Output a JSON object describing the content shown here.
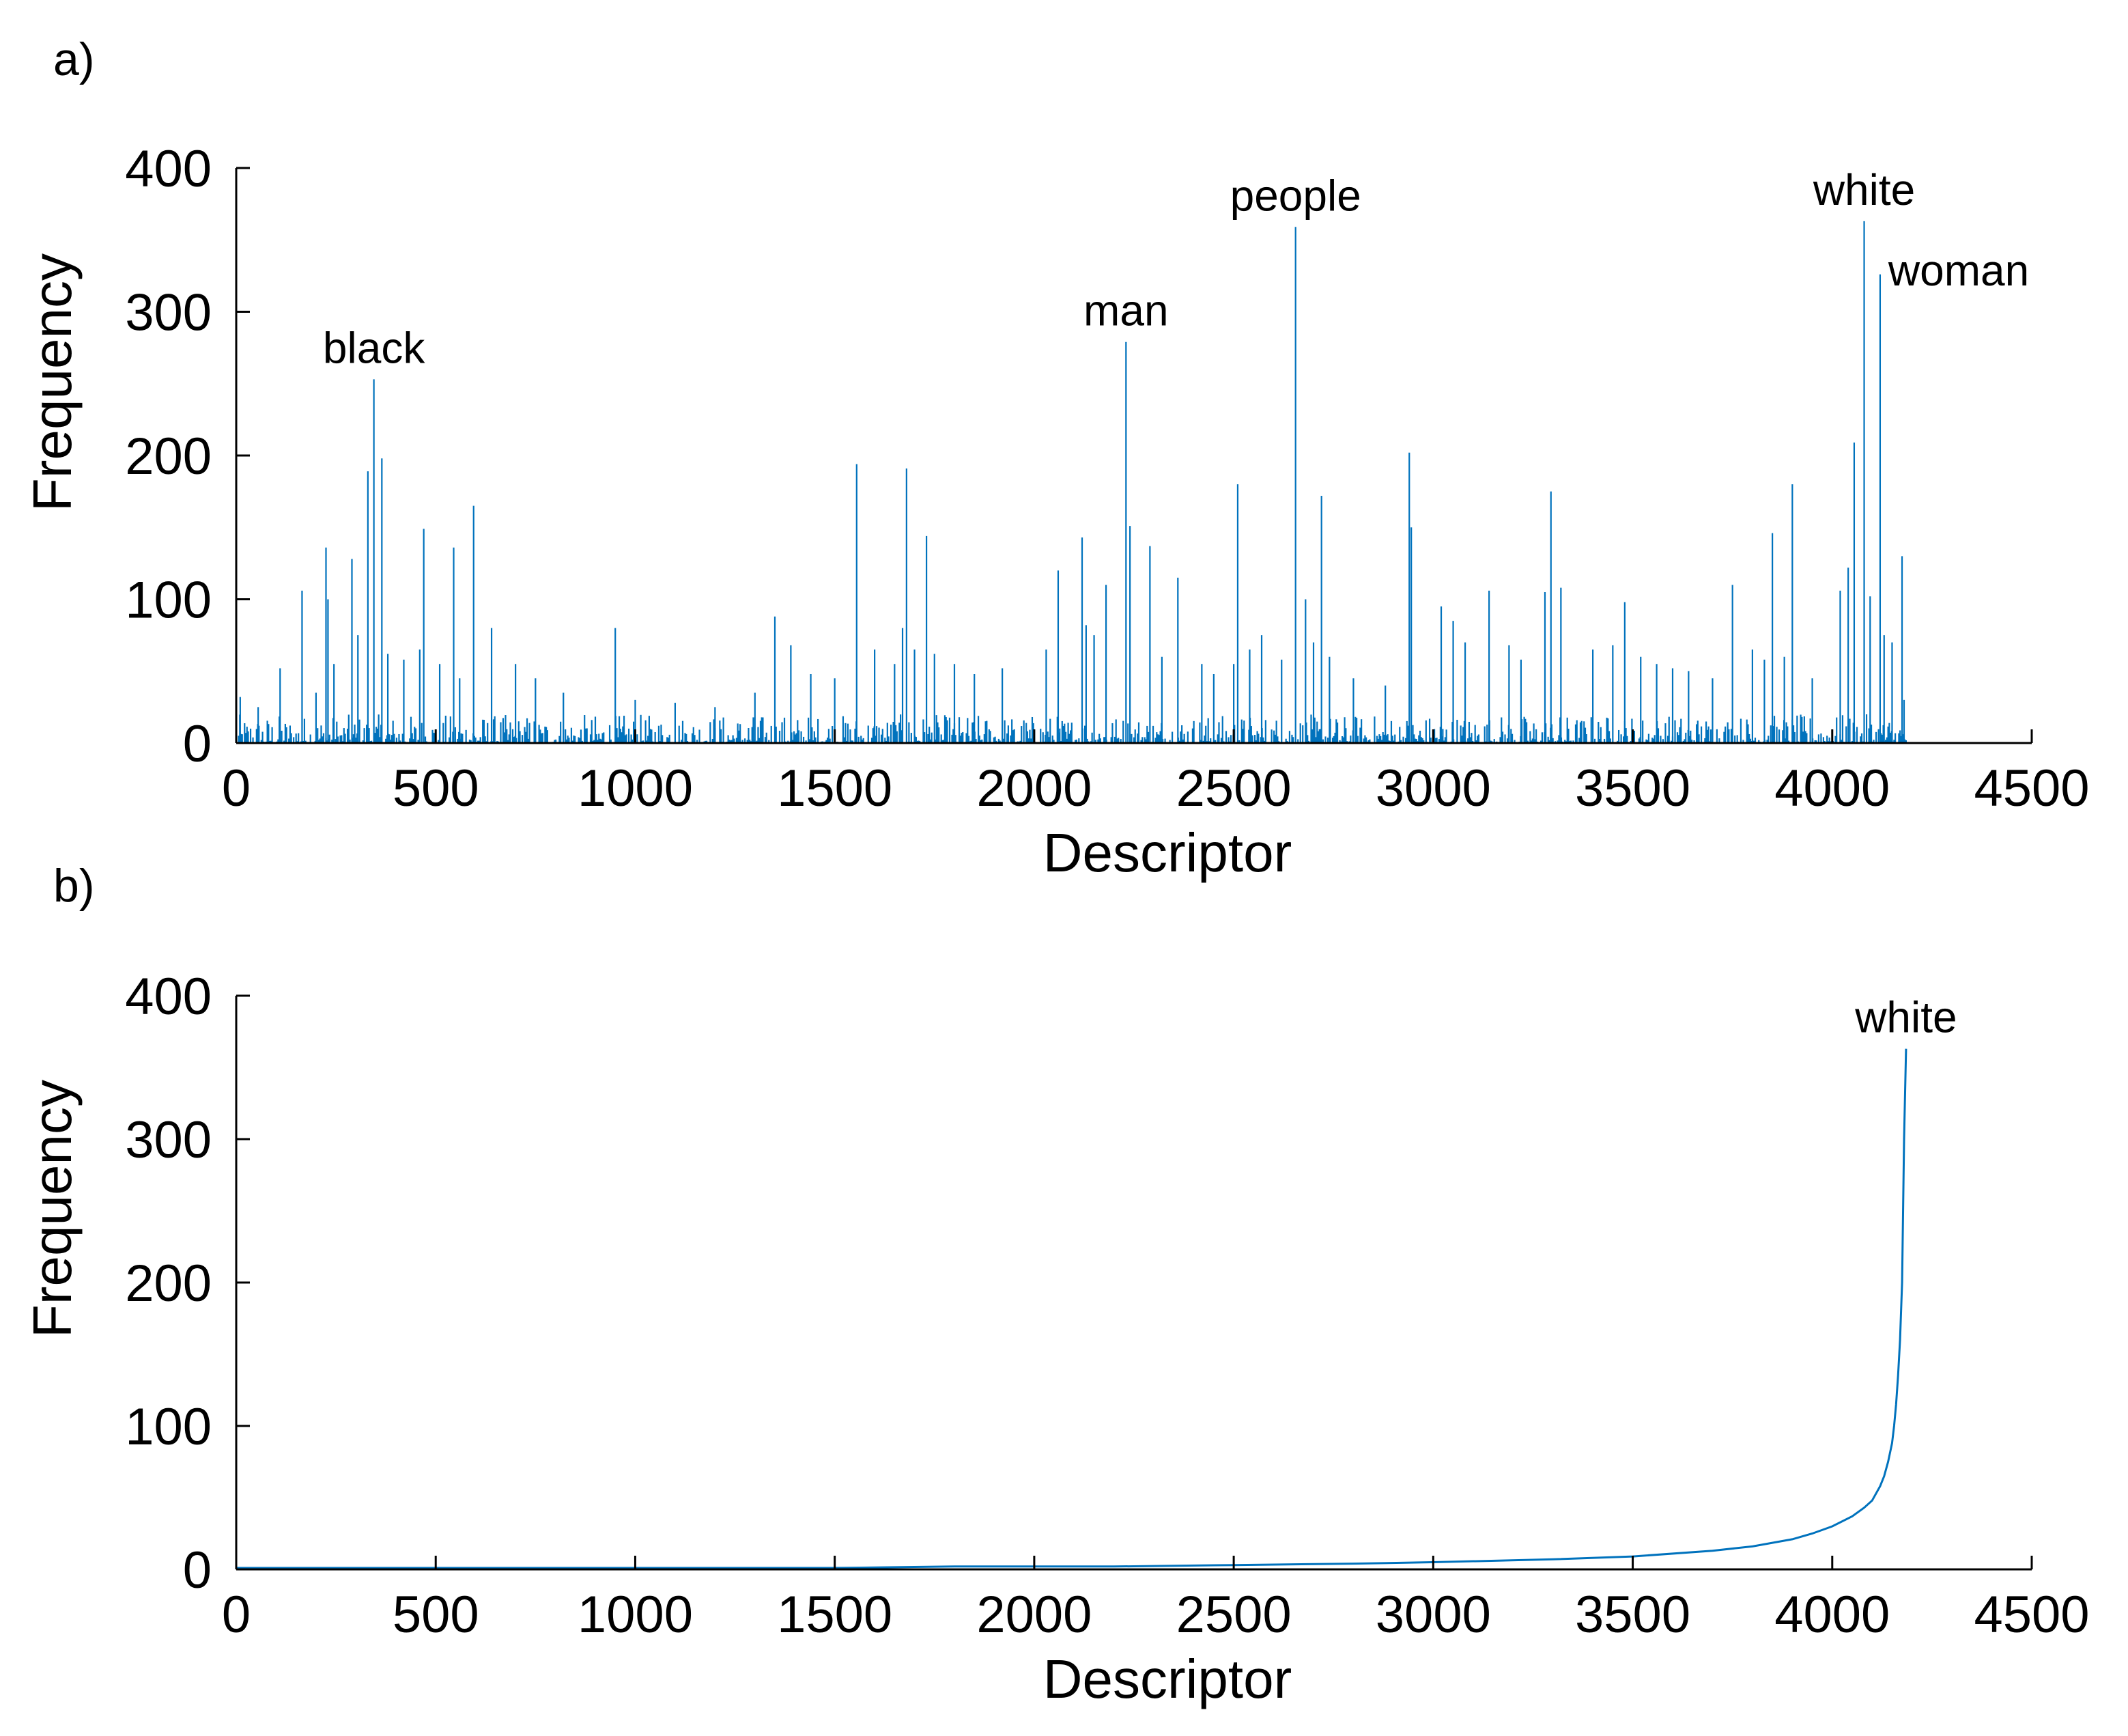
{
  "colors": {
    "series": "#0072BD",
    "axis": "#000000"
  },
  "chart_data": [
    {
      "panel_label": "a)",
      "type": "bar",
      "xlabel": "Descriptor",
      "ylabel": "Frequency",
      "xlim": [
        0,
        4500
      ],
      "ylim": [
        0,
        400
      ],
      "xticks": [
        0,
        500,
        1000,
        1500,
        2000,
        2500,
        3000,
        3500,
        4000,
        4500
      ],
      "yticks": [
        0,
        100,
        200,
        300,
        400
      ],
      "grid": false,
      "descriptor_count": 4185,
      "background_frequency_max": 20,
      "spikes": [
        [
          10,
          32
        ],
        [
          55,
          25
        ],
        [
          110,
          52
        ],
        [
          165,
          106
        ],
        [
          200,
          35
        ],
        [
          225,
          136
        ],
        [
          230,
          100
        ],
        [
          245,
          55
        ],
        [
          290,
          128
        ],
        [
          305,
          75
        ],
        [
          330,
          189
        ],
        [
          345,
          253
        ],
        [
          365,
          198
        ],
        [
          380,
          62
        ],
        [
          420,
          58
        ],
        [
          460,
          65
        ],
        [
          470,
          149
        ],
        [
          510,
          55
        ],
        [
          545,
          136
        ],
        [
          560,
          45
        ],
        [
          595,
          165
        ],
        [
          640,
          80
        ],
        [
          700,
          55
        ],
        [
          750,
          45
        ],
        [
          820,
          35
        ],
        [
          950,
          80
        ],
        [
          1000,
          30
        ],
        [
          1100,
          28
        ],
        [
          1200,
          25
        ],
        [
          1300,
          35
        ],
        [
          1350,
          88
        ],
        [
          1390,
          68
        ],
        [
          1440,
          48
        ],
        [
          1500,
          45
        ],
        [
          1555,
          194
        ],
        [
          1600,
          65
        ],
        [
          1650,
          55
        ],
        [
          1670,
          80
        ],
        [
          1680,
          191
        ],
        [
          1700,
          65
        ],
        [
          1730,
          144
        ],
        [
          1750,
          62
        ],
        [
          1800,
          55
        ],
        [
          1850,
          48
        ],
        [
          1920,
          52
        ],
        [
          2030,
          65
        ],
        [
          2060,
          120
        ],
        [
          2120,
          143
        ],
        [
          2130,
          82
        ],
        [
          2150,
          75
        ],
        [
          2180,
          110
        ],
        [
          2230,
          279
        ],
        [
          2240,
          151
        ],
        [
          2290,
          137
        ],
        [
          2320,
          60
        ],
        [
          2360,
          115
        ],
        [
          2420,
          55
        ],
        [
          2450,
          48
        ],
        [
          2500,
          55
        ],
        [
          2510,
          180
        ],
        [
          2540,
          65
        ],
        [
          2570,
          75
        ],
        [
          2620,
          58
        ],
        [
          2655,
          359
        ],
        [
          2680,
          100
        ],
        [
          2700,
          70
        ],
        [
          2720,
          172
        ],
        [
          2740,
          60
        ],
        [
          2800,
          45
        ],
        [
          2880,
          40
        ],
        [
          2940,
          202
        ],
        [
          2945,
          150
        ],
        [
          3020,
          95
        ],
        [
          3050,
          85
        ],
        [
          3080,
          70
        ],
        [
          3140,
          106
        ],
        [
          3190,
          68
        ],
        [
          3220,
          58
        ],
        [
          3280,
          105
        ],
        [
          3295,
          175
        ],
        [
          3320,
          108
        ],
        [
          3400,
          65
        ],
        [
          3450,
          68
        ],
        [
          3480,
          98
        ],
        [
          3520,
          60
        ],
        [
          3560,
          55
        ],
        [
          3600,
          52
        ],
        [
          3640,
          50
        ],
        [
          3700,
          45
        ],
        [
          3750,
          110
        ],
        [
          3800,
          65
        ],
        [
          3830,
          58
        ],
        [
          3850,
          146
        ],
        [
          3880,
          60
        ],
        [
          3900,
          180
        ],
        [
          3950,
          45
        ],
        [
          4020,
          106
        ],
        [
          4040,
          122
        ],
        [
          4055,
          209
        ],
        [
          4080,
          363
        ],
        [
          4095,
          102
        ],
        [
          4120,
          326
        ],
        [
          4130,
          75
        ],
        [
          4150,
          70
        ],
        [
          4175,
          130
        ],
        [
          4180,
          30
        ]
      ],
      "annotations": [
        {
          "label": "black",
          "x": 345,
          "y": 253
        },
        {
          "label": "man",
          "x": 2230,
          "y": 279
        },
        {
          "label": "people",
          "x": 2655,
          "y": 359
        },
        {
          "label": "white",
          "x": 4080,
          "y": 363
        },
        {
          "label": "woman",
          "x": 4120,
          "y": 326
        }
      ]
    },
    {
      "panel_label": "b)",
      "type": "line",
      "xlabel": "Descriptor",
      "ylabel": "Frequency",
      "xlim": [
        0,
        4500
      ],
      "ylim": [
        0,
        400
      ],
      "xticks": [
        0,
        500,
        1000,
        1500,
        2000,
        2500,
        3000,
        3500,
        4000,
        4500
      ],
      "yticks": [
        0,
        100,
        200,
        300,
        400
      ],
      "grid": false,
      "x": [
        0,
        1500,
        1800,
        2200,
        2500,
        2800,
        3000,
        3300,
        3500,
        3700,
        3800,
        3900,
        3950,
        4000,
        4050,
        4080,
        4100,
        4120,
        4130,
        4140,
        4150,
        4155,
        4160,
        4165,
        4170,
        4175,
        4180,
        4185
      ],
      "y": [
        1,
        1,
        2,
        2,
        3,
        4,
        5,
        7,
        9,
        13,
        16,
        21,
        25,
        30,
        37,
        43,
        48,
        58,
        65,
        75,
        88,
        100,
        115,
        135,
        160,
        200,
        300,
        363
      ],
      "annotations": [
        {
          "label": "white",
          "x": 4185,
          "y": 363
        }
      ]
    }
  ]
}
